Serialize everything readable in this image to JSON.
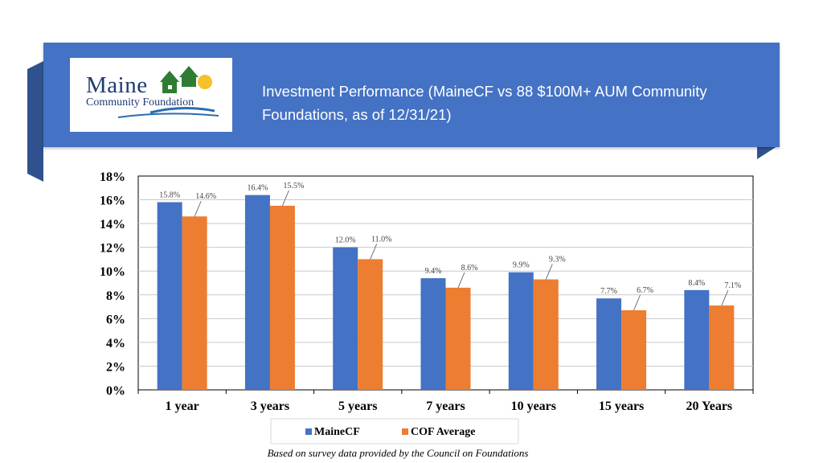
{
  "header": {
    "title": "Investment Performance (MaineCF vs 88 $100M+ AUM Community Foundations, as of 12/31/21)",
    "logo_line1": "Maine",
    "logo_line2": "Community Foundation"
  },
  "colors": {
    "header_band": "#4472C4",
    "series_mainecf": "#4472C4",
    "series_cof": "#ED7D31"
  },
  "footnote": "Based on survey data provided by the Council on Foundations",
  "chart_data": {
    "type": "bar",
    "categories": [
      "1 year",
      "3 years",
      "5 years",
      "7 years",
      "10 years",
      "15 years",
      "20 Years"
    ],
    "series": [
      {
        "name": "MaineCF",
        "values": [
          15.8,
          16.4,
          12.0,
          9.4,
          9.9,
          7.7,
          8.4
        ],
        "labels": [
          "15.8%",
          "16.4%",
          "12.0%",
          "9.4%",
          "9.9%",
          "7.7%",
          "8.4%"
        ]
      },
      {
        "name": "COF Average",
        "values": [
          14.6,
          15.5,
          11.0,
          8.6,
          9.3,
          6.7,
          7.1
        ],
        "labels": [
          "14.6%",
          "15.5%",
          "11.0%",
          "8.6%",
          "9.3%",
          "6.7%",
          "7.1%"
        ]
      }
    ],
    "yticks": [
      "0%",
      "2%",
      "4%",
      "6%",
      "8%",
      "10%",
      "12%",
      "14%",
      "16%",
      "18%"
    ],
    "ylim": [
      0,
      18
    ],
    "grid": true,
    "legend": "bottom"
  }
}
